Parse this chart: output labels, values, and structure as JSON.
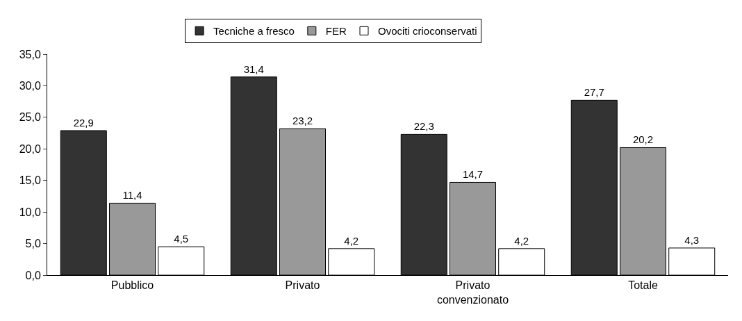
{
  "chart_data": {
    "type": "bar",
    "categories": [
      "Pubblico",
      "Privato",
      "Privato convenzionato",
      "Totale"
    ],
    "series": [
      {
        "name": "Tecniche a fresco",
        "color": "#333333",
        "values": [
          22.9,
          31.4,
          22.3,
          27.7
        ],
        "value_labels": [
          "22,9",
          "31,4",
          "22,3",
          "27,7"
        ]
      },
      {
        "name": "FER",
        "color": "#999999",
        "values": [
          11.4,
          23.2,
          14.7,
          20.2
        ],
        "value_labels": [
          "11,4",
          "23,2",
          "14,7",
          "20,2"
        ]
      },
      {
        "name": "Ovociti crioconservati",
        "color": "#ffffff",
        "values": [
          4.5,
          4.2,
          4.2,
          4.3
        ],
        "value_labels": [
          "4,5",
          "4,2",
          "4,2",
          "4,3"
        ]
      }
    ],
    "ylim": [
      0,
      35
    ],
    "yticks": [
      {
        "value": 0,
        "label": "0,0"
      },
      {
        "value": 5,
        "label": "5,0"
      },
      {
        "value": 10,
        "label": "10,0"
      },
      {
        "value": 15,
        "label": "15,0"
      },
      {
        "value": 20,
        "label": "20,0"
      },
      {
        "value": 25,
        "label": "25,0"
      },
      {
        "value": 30,
        "label": "30,0"
      },
      {
        "value": 35,
        "label": "35,0"
      }
    ],
    "legend": "top"
  }
}
